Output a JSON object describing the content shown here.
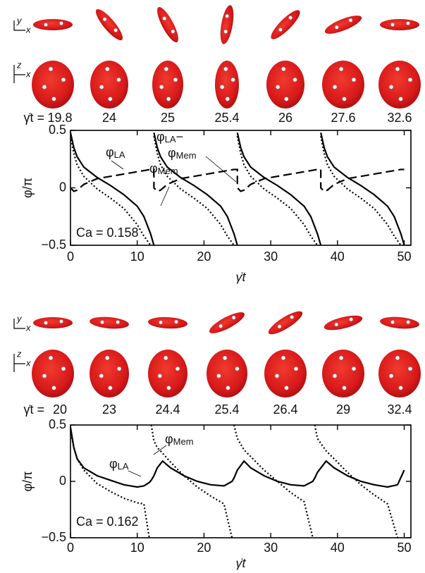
{
  "chart_data": [
    {
      "type": "line",
      "snapshot_label": "γ̇t =",
      "snapshot_times": [
        19.8,
        24,
        25,
        25.4,
        26,
        27.6,
        32.6
      ],
      "frame_labels": [
        [
          "y",
          "x"
        ],
        [
          "z",
          "x"
        ]
      ],
      "x_label": "γ̇t",
      "y_label": "φ/π",
      "annotation": "Ca = 0.158",
      "xlim": [
        0,
        51
      ],
      "xticks": [
        0,
        10,
        20,
        30,
        40,
        50
      ],
      "ylim": [
        -0.5,
        0.5
      ],
      "yticks": [
        0.5,
        0,
        {
          "value": -0.5,
          "label": "−0.5"
        }
      ],
      "x": [
        0,
        0.5,
        1,
        2,
        4,
        6,
        8,
        10,
        11,
        12,
        12.5,
        12.5,
        12.5,
        13,
        13.5,
        14.5,
        16.5,
        18.5,
        20.5,
        22.5,
        23.5,
        24.5,
        25,
        25,
        25,
        25.5,
        26,
        27,
        29,
        31,
        33,
        35,
        36,
        37,
        37.5,
        37.5,
        37.5,
        38,
        38.5,
        39.5,
        41.5,
        43.5,
        45.5,
        47.5,
        48.5,
        49.5,
        50
      ],
      "series": [
        {
          "name": [
            [
              "φ",
              "LA"
            ]
          ],
          "color": "#000000",
          "style": "solid",
          "values": [
            0.48,
            0.35,
            0.27,
            0.18,
            0.09,
            0.02,
            -0.06,
            -0.16,
            -0.25,
            -0.4,
            -0.5,
            null,
            0.48,
            0.35,
            0.27,
            0.18,
            0.09,
            0.02,
            -0.06,
            -0.16,
            -0.25,
            -0.4,
            -0.5,
            null,
            0.48,
            0.35,
            0.27,
            0.18,
            0.09,
            0.02,
            -0.06,
            -0.16,
            -0.25,
            -0.4,
            -0.5,
            null,
            0.48,
            0.35,
            0.27,
            0.18,
            0.09,
            0.02,
            -0.06,
            -0.16,
            -0.25,
            -0.4,
            -0.5
          ]
        },
        {
          "name": [
            [
              "φ",
              "Mem"
            ]
          ],
          "color": "#000000",
          "style": "dotted",
          "values": [
            0.45,
            0.3,
            0.2,
            0.1,
            -0.01,
            -0.09,
            -0.18,
            -0.32,
            -0.42,
            -0.5,
            null,
            null,
            0.45,
            0.3,
            0.2,
            0.1,
            -0.01,
            -0.09,
            -0.18,
            -0.32,
            -0.42,
            -0.5,
            null,
            null,
            0.45,
            0.3,
            0.2,
            0.1,
            -0.01,
            -0.09,
            -0.18,
            -0.32,
            -0.42,
            -0.5,
            null,
            null,
            0.45,
            0.3,
            0.2,
            0.1,
            -0.01,
            -0.09,
            -0.18,
            -0.32,
            -0.42,
            -0.5,
            null
          ]
        },
        {
          "name": [
            [
              "φ",
              "LA",
              "−"
            ],
            [
              "φ",
              "Mem"
            ]
          ],
          "color": "#000000",
          "style": "dashed",
          "values": [
            0,
            -0.03,
            -0.02,
            0.03,
            0.08,
            0.1,
            0.12,
            0.14,
            0.15,
            0.16,
            0.16,
            0,
            0,
            -0.03,
            -0.02,
            0.03,
            0.08,
            0.1,
            0.12,
            0.14,
            0.15,
            0.16,
            0.16,
            0,
            0,
            -0.03,
            -0.02,
            0.03,
            0.08,
            0.1,
            0.12,
            0.14,
            0.15,
            0.16,
            0.16,
            0,
            0,
            -0.03,
            -0.02,
            0.03,
            0.08,
            0.1,
            0.12,
            0.14,
            0.15,
            0.16,
            0.16
          ]
        }
      ]
    },
    {
      "type": "line",
      "snapshot_label": "γ̇t =",
      "snapshot_times": [
        20,
        23,
        24.4,
        25.4,
        26.4,
        29,
        32.4
      ],
      "frame_labels": [
        [
          "y",
          "x"
        ],
        [
          "z",
          "x"
        ]
      ],
      "x_label": "γ̇t",
      "y_label": "φ/π",
      "annotation": "Ca = 0.162",
      "xlim": [
        0,
        51
      ],
      "xticks": [
        0,
        10,
        20,
        30,
        40,
        50
      ],
      "ylim": [
        -0.5,
        0.5
      ],
      "yticks": [
        0.5,
        0,
        {
          "value": -0.5,
          "label": "−0.5"
        }
      ],
      "x": [
        0,
        0.5,
        1,
        2,
        4,
        6,
        8,
        10,
        11,
        11.8,
        11.8,
        12.1,
        12.5,
        13,
        13.8,
        15,
        17,
        19,
        21,
        23,
        24.2,
        24.2,
        24.5,
        25,
        26,
        27,
        29,
        31,
        33,
        35,
        36.3,
        36.3,
        36.6,
        37,
        38.3,
        39.5,
        41.5,
        43.5,
        45.5,
        47.5,
        49,
        50
      ],
      "series": [
        {
          "name": [
            [
              "φ",
              "LA"
            ]
          ],
          "color": "#000000",
          "style": "solid",
          "values": [
            0.48,
            0.3,
            0.2,
            0.12,
            0.05,
            0.01,
            -0.03,
            -0.05,
            -0.04,
            -0.01,
            -0.01,
            0.01,
            0.05,
            0.12,
            0.18,
            0.12,
            0.05,
            0,
            -0.03,
            -0.04,
            0,
            0,
            0.03,
            0.1,
            0.18,
            0.12,
            0.05,
            0,
            -0.03,
            -0.04,
            0,
            0,
            0.03,
            0.08,
            0.18,
            0.12,
            0.05,
            0,
            -0.03,
            -0.05,
            -0.03,
            0.1
          ]
        },
        {
          "name": [
            [
              "φ",
              "Mem"
            ]
          ],
          "color": "#000000",
          "style": "dotted",
          "values": [
            0.45,
            0.3,
            0.2,
            0.1,
            -0.02,
            -0.09,
            -0.15,
            -0.19,
            -0.2,
            -0.5,
            null,
            0.5,
            0.36,
            0.3,
            0.25,
            0.17,
            0.05,
            -0.05,
            -0.13,
            -0.2,
            -0.5,
            null,
            0.5,
            0.38,
            0.28,
            0.22,
            0.1,
            0,
            -0.1,
            -0.18,
            -0.5,
            null,
            0.5,
            0.38,
            0.27,
            0.2,
            0.08,
            -0.03,
            -0.12,
            -0.2,
            -0.5,
            null
          ]
        }
      ]
    }
  ]
}
